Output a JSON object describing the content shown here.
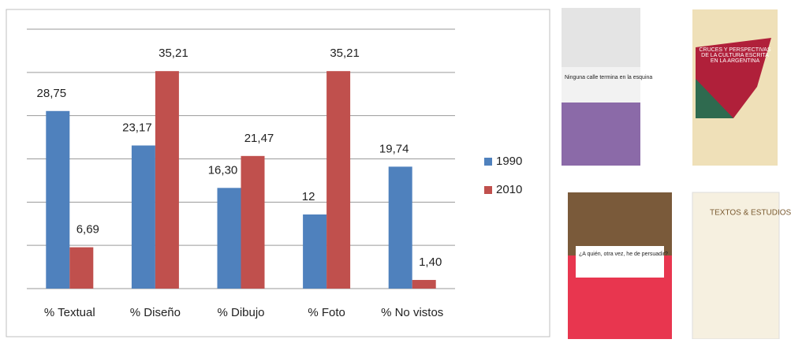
{
  "chart_data": {
    "type": "bar",
    "categories": [
      "% Textual",
      "% Diseño",
      "% Dibujo",
      "% Foto",
      "% No vistos"
    ],
    "series": [
      {
        "name": "1990",
        "color": "#4f81bd",
        "values": [
          28.75,
          23.17,
          16.3,
          12,
          19.74
        ],
        "value_labels": [
          "28,75",
          "23,17",
          "16,30",
          "12",
          "19,74"
        ]
      },
      {
        "name": "2010",
        "color": "#c0504d",
        "values": [
          6.69,
          35.21,
          21.47,
          35.21,
          1.4
        ],
        "value_labels": [
          "6,69",
          "35,21",
          "21,47",
          "35,21",
          "1,40"
        ]
      }
    ],
    "ylim": [
      0,
      42
    ],
    "yticks": [
      0,
      7,
      14,
      21,
      28,
      35,
      42
    ],
    "grid": true,
    "legend": "right"
  },
  "covers": [
    {
      "title": "Ninguna calle termina en la esquina"
    },
    {
      "title": "CRUCES Y PERSPECTIVAS DE LA CULTURA ESCRITA EN LA ARGENTINA"
    },
    {
      "title": "¿A quién, otra vez, he de persuadir?"
    },
    {
      "title": "TEXTOS & ESTUDIOS"
    }
  ]
}
